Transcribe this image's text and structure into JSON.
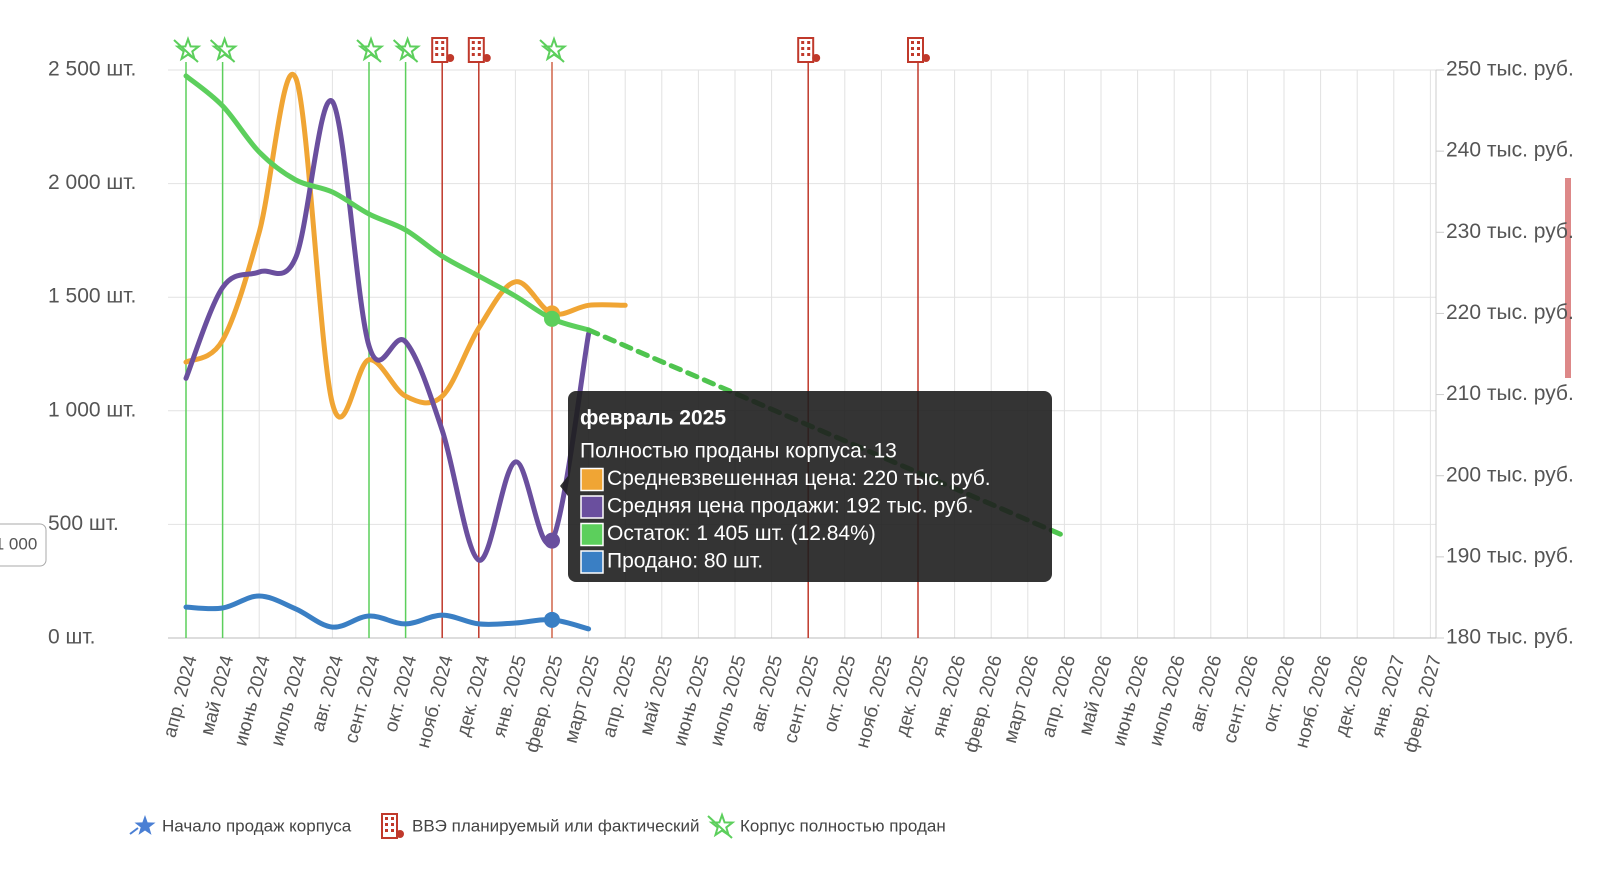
{
  "chart_data": {
    "type": "line",
    "categories": [
      "апр. 2024",
      "май 2024",
      "июнь 2024",
      "июль 2024",
      "авг. 2024",
      "сент. 2024",
      "окт. 2024",
      "нояб. 2024",
      "дек. 2024",
      "янв. 2025",
      "февр. 2025",
      "март 2025",
      "апр. 2025",
      "май 2025",
      "июнь 2025",
      "июль 2025",
      "авг. 2025",
      "сент. 2025",
      "окт. 2025",
      "нояб. 2025",
      "дек. 2025",
      "янв. 2026",
      "февр. 2026",
      "март 2026",
      "апр. 2026",
      "май 2026",
      "июнь 2026",
      "июль 2026",
      "авг. 2026",
      "сент. 2026",
      "окт. 2026",
      "нояб. 2026",
      "дек. 2026",
      "янв. 2027",
      "февр. 2027"
    ],
    "series": [
      {
        "name": "Средневзвешенная цена",
        "color": "#f0a534",
        "axis": "y2",
        "values": [
          214,
          216.7,
          230,
          249,
          208.9,
          214.3,
          209.8,
          209.8,
          218.2,
          223.9,
          220,
          221,
          221,
          null,
          null,
          null,
          null,
          null,
          null,
          null,
          null,
          null,
          null,
          null,
          null,
          null,
          null,
          null,
          null,
          null,
          null,
          null,
          null,
          null,
          null
        ]
      },
      {
        "name": "Средняя цена продажи",
        "color": "#6a4f9e",
        "axis": "y2",
        "values": [
          212,
          223.2,
          225.1,
          226.9,
          246.1,
          216,
          216.5,
          205.6,
          189.6,
          201.7,
          192,
          217.5,
          null,
          null,
          null,
          null,
          null,
          null,
          null,
          null,
          null,
          null,
          null,
          null,
          null,
          null,
          null,
          null,
          null,
          null,
          null,
          null,
          null,
          null,
          null
        ]
      },
      {
        "name": "Остаток",
        "color": "#5ccf5c",
        "values": [
          2474,
          2342,
          2139,
          2016,
          1963,
          1866,
          1796,
          1681,
          1593,
          1505,
          1405,
          1356,
          null,
          null,
          null,
          null,
          null,
          null,
          null,
          null,
          null,
          null,
          null,
          null,
          null,
          null,
          null,
          null,
          null,
          null,
          null,
          null,
          null,
          null,
          null
        ]
      },
      {
        "name": "Продано",
        "color": "#3a7fc4",
        "values": [
          136,
          132,
          185,
          128,
          48,
          97,
          62,
          101,
          62,
          66,
          80,
          40,
          null,
          null,
          null,
          null,
          null,
          null,
          null,
          null,
          null,
          null,
          null,
          null,
          null,
          null,
          null,
          null,
          null,
          null,
          null,
          null,
          null,
          null,
          null
        ]
      },
      {
        "color": "#4fc44f",
        "dashed": true,
        "values": [
          null,
          null,
          null,
          null,
          null,
          null,
          null,
          null,
          null,
          null,
          null,
          1356,
          1286,
          1216,
          1147,
          1077,
          1007,
          937,
          868,
          798,
          728,
          658,
          589,
          519,
          449,
          null,
          null,
          null,
          null,
          null,
          null,
          null,
          null,
          null,
          null
        ]
      }
    ],
    "ylim": [
      0,
      2500
    ],
    "yticks": [
      {
        "value": 0,
        "label": "0 шт."
      },
      {
        "value": 500,
        "label": "500 шт."
      },
      {
        "value": 1000,
        "label": "1 000 шт."
      },
      {
        "value": 1500,
        "label": "1 500 шт."
      },
      {
        "value": 2000,
        "label": "2 000 шт."
      },
      {
        "value": 2500,
        "label": "2 500 шт."
      }
    ],
    "y2lim": [
      180,
      250
    ],
    "y2ticks": [
      {
        "value": 180,
        "label": "180 тыс. руб."
      },
      {
        "value": 190,
        "label": "190 тыс. руб."
      },
      {
        "value": 200,
        "label": "200 тыс. руб."
      },
      {
        "value": 210,
        "label": "210 тыс. руб."
      },
      {
        "value": 220,
        "label": "220 тыс. руб."
      },
      {
        "value": 230,
        "label": "230 тыс. руб."
      },
      {
        "value": 240,
        "label": "240 тыс. руб."
      },
      {
        "value": 250,
        "label": "250 тыс. руб."
      }
    ],
    "grid": true,
    "event_legend": [
      {
        "label": "Начало продаж корпуса",
        "color": "#4a7fd4",
        "x": []
      },
      {
        "label": "ВВЭ планируемый или фактический",
        "color": "#c0392b",
        "x": [
          "нояб. 2024",
          "дек. 2024",
          "сент. 2025",
          "дек. 2025"
        ]
      },
      {
        "label": "Корпус полностью продан",
        "color": "#5ccf5c",
        "x": [
          "апр. 2024",
          "май 2024",
          "сент. 2024",
          "окт. 2024",
          "февр. 2025"
        ]
      }
    ],
    "side_badge": "1 000",
    "tooltip": {
      "title": "февраль 2025",
      "x": "февр. 2025",
      "rows": [
        "Полностью проданы корпуса: 13",
        "Средневзвешенная цена: 220 тыс. руб.",
        "Средняя цена продажи: 192 тыс. руб.",
        "Остаток: 1 405 шт. (12.84%)",
        "Продано: 80 шт."
      ]
    }
  }
}
